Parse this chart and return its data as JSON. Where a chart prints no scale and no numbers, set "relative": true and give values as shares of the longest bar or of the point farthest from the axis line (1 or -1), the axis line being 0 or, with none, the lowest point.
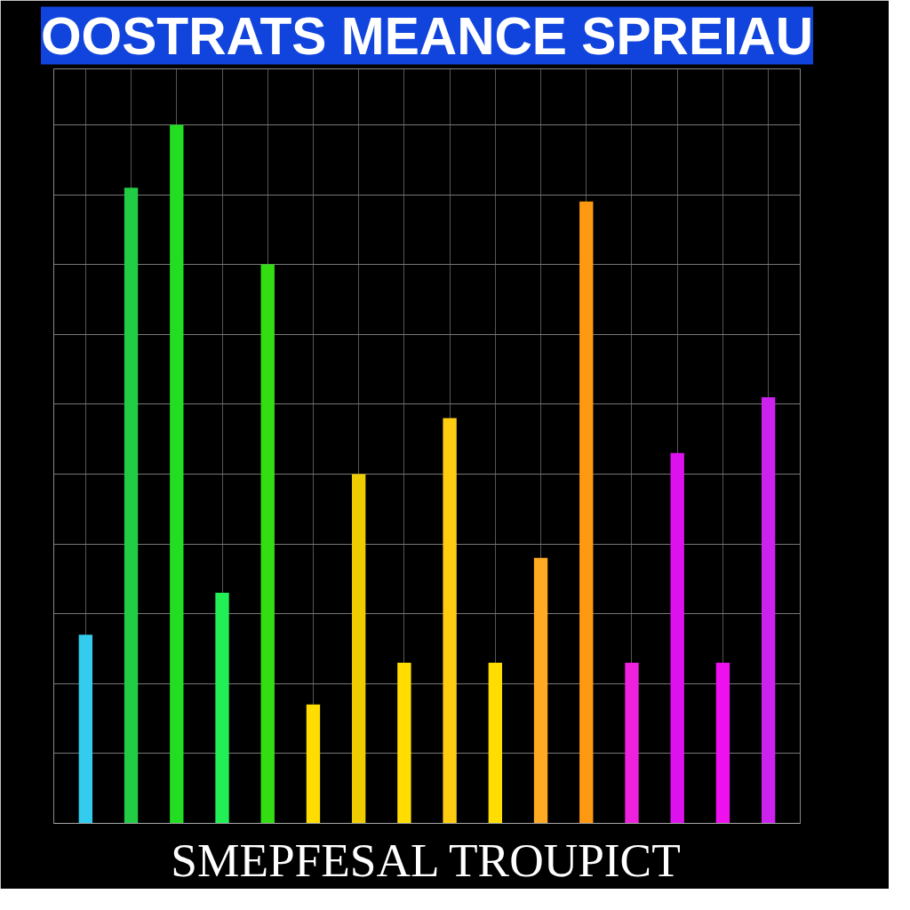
{
  "chart_data": {
    "type": "bar",
    "title": "OOSTRATS MEANCE SPREIAU",
    "xlabel": "SMEPFESAL TROUPICT",
    "categories": [
      null,
      null,
      null,
      null,
      null,
      null,
      null,
      null,
      null,
      null,
      null,
      null,
      null,
      null,
      null,
      null
    ],
    "values": [
      0.27,
      0.91,
      1,
      0.33,
      0.8,
      0.17,
      0.5,
      0.23,
      0.58,
      0.23,
      0.38,
      0.89,
      0.23,
      0.53,
      0.23,
      0.61
    ],
    "colors": [
      "#33ccee",
      "#22cc44",
      "#22dd22",
      "#22ee55",
      "#33dd11",
      "#ffdd00",
      "#eecc00",
      "#ffdd00",
      "#ffcc11",
      "#ffdd00",
      "#ffaa22",
      "#ff9911",
      "#ee22dd",
      "#dd11ee",
      "#ee11ee",
      "#cc22ee"
    ],
    "relative": true,
    "grid": true
  }
}
